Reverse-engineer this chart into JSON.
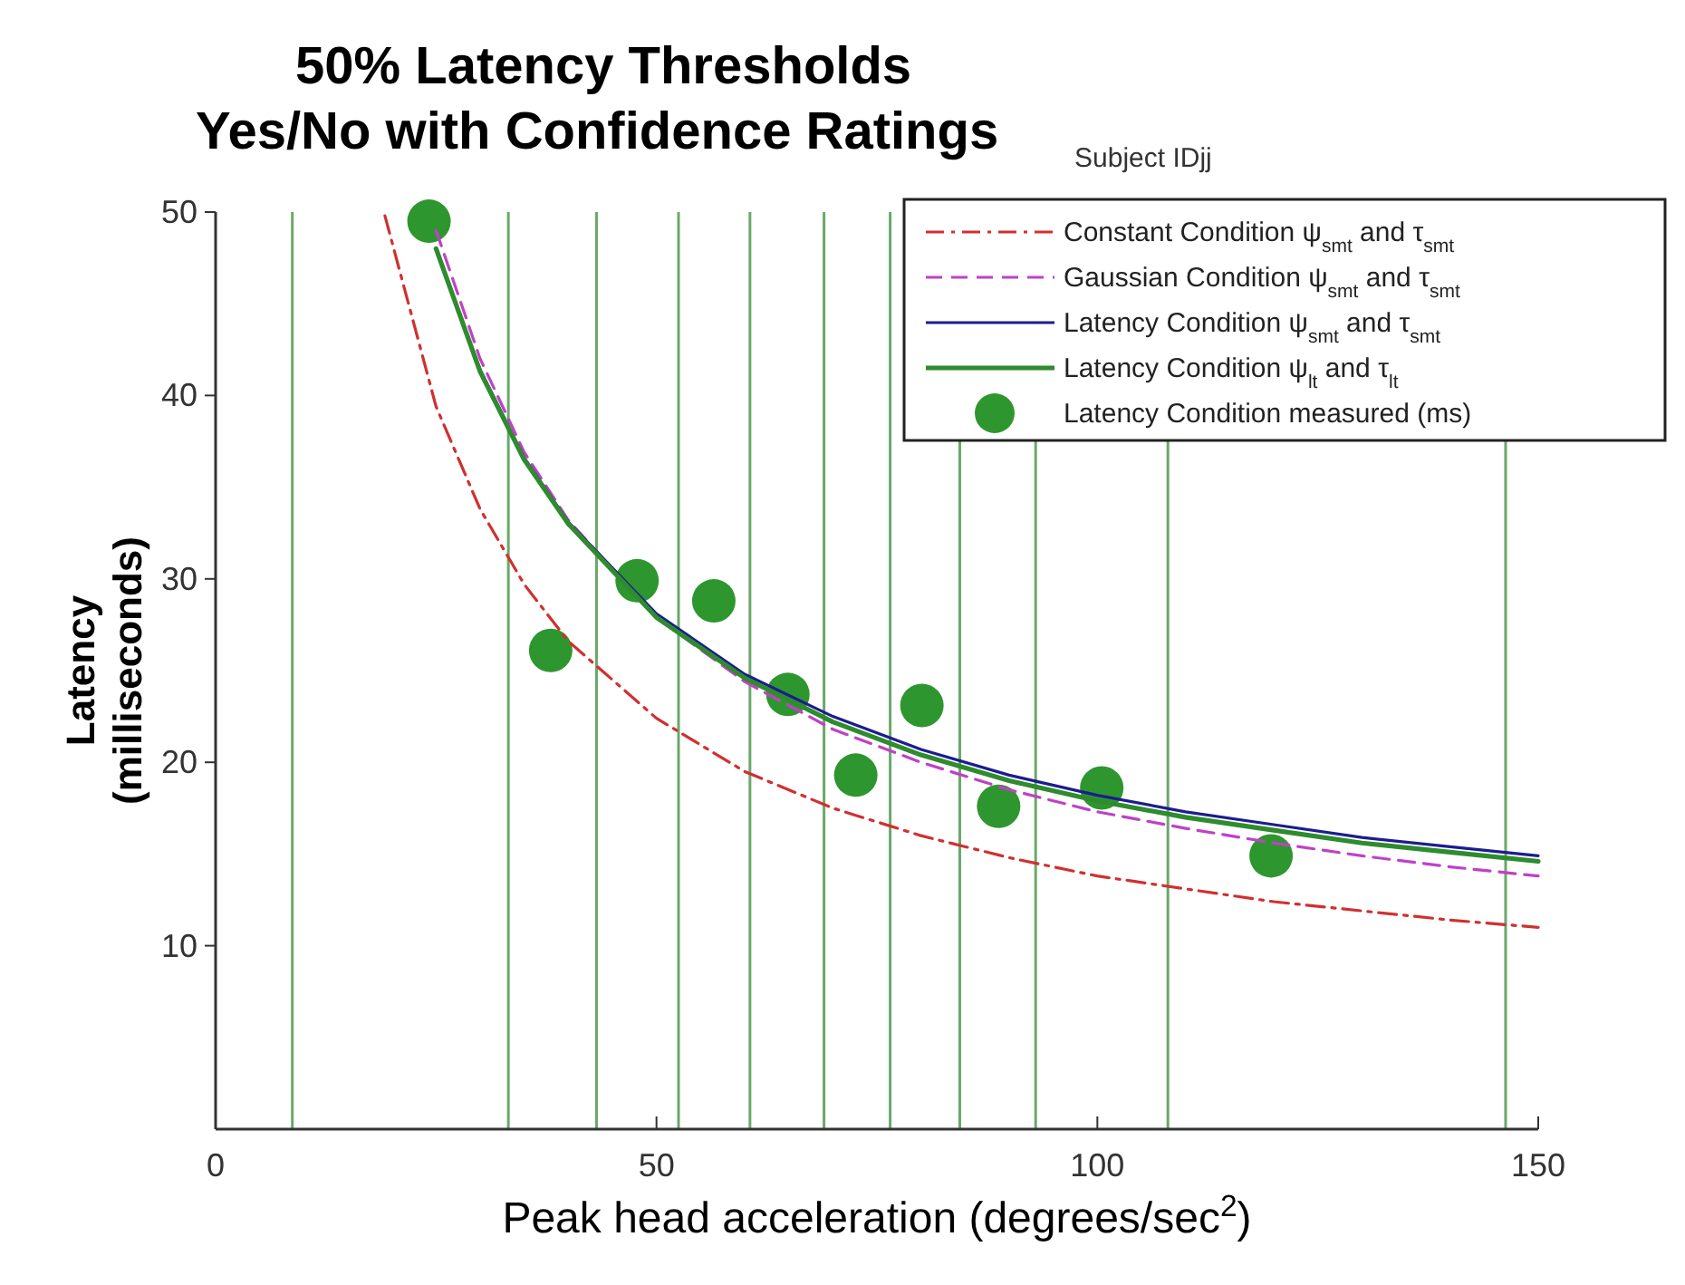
{
  "chart_data": {
    "type": "line",
    "title": "50% Latency Thresholds\nYes/No with Confidence Ratings",
    "subtitle": "Subject IDjj",
    "xlabel": "Peak head acceleration (degrees/sec$^{2}$)",
    "ylabel": "Latency\n(milliseconds)",
    "xlim": [
      0,
      150
    ],
    "xticks": [
      0,
      50,
      100,
      150
    ],
    "ylim": [
      0,
      50
    ],
    "yticks": [
      10,
      20,
      30,
      40,
      50
    ],
    "legend": "top right",
    "grid": false,
    "series": [
      {
        "name": "Constant Condition ψ$_{smt}$ and τ$_{smt}$",
        "color": "#d03030",
        "line_style": "dashdot",
        "x": [
          19.2,
          25,
          30,
          35,
          40,
          50,
          60,
          70,
          80,
          90,
          100,
          110,
          120,
          130,
          140,
          150
        ],
        "values": [
          49.8,
          39.4,
          33.8,
          29.7,
          26.6,
          22.4,
          19.5,
          17.5,
          16.0,
          14.8,
          13.8,
          13.1,
          12.4,
          11.9,
          11.4,
          11.0
        ]
      },
      {
        "name": "Gaussian Condition ψ$_{smt}$ and τ$_{smt}$",
        "color": "#c040c8",
        "line_style": "dashed",
        "x": [
          25,
          30,
          35,
          40,
          50,
          60,
          70,
          80,
          90,
          100,
          110,
          120,
          130,
          140,
          150
        ],
        "values": [
          49.0,
          42.0,
          36.9,
          33.2,
          27.9,
          24.4,
          21.8,
          20.0,
          18.5,
          17.3,
          16.4,
          15.6,
          14.9,
          14.3,
          13.8
        ]
      },
      {
        "name": "Latency Condition ψ$_{smt}$ and τ$_{smt}$",
        "color": "#1c1c90",
        "line_style": "solid",
        "x": [
          25,
          30,
          35,
          40,
          50,
          60,
          70,
          80,
          90,
          100,
          110,
          120,
          130,
          140,
          150
        ],
        "values": [
          48.0,
          41.4,
          36.6,
          33.1,
          28.1,
          24.8,
          22.5,
          20.7,
          19.3,
          18.2,
          17.3,
          16.6,
          15.9,
          15.4,
          14.9
        ]
      },
      {
        "name": "Latency Condition ψ$_{lt}$ and τ$_{lt}$",
        "color": "#2e8b2e",
        "line_style": "solid",
        "x": [
          25,
          30,
          35,
          40,
          50,
          60,
          70,
          80,
          90,
          100,
          110,
          120,
          130,
          140,
          150
        ],
        "values": [
          48.0,
          41.3,
          36.5,
          33.0,
          27.9,
          24.6,
          22.2,
          20.4,
          19.0,
          17.9,
          17.0,
          16.3,
          15.6,
          15.1,
          14.6
        ]
      },
      {
        "name": "Latency Condition measured (ms)",
        "type": "scatter",
        "color": "#2e962e",
        "marker": "circle",
        "x": [
          24.2,
          38.0,
          47.8,
          56.5,
          64.9,
          72.6,
          80.1,
          88.8,
          100.5,
          119.7
        ],
        "values": [
          49.5,
          26.1,
          29.9,
          28.8,
          23.7,
          19.3,
          23.1,
          17.6,
          18.6,
          14.9
        ]
      }
    ],
    "ref_lines": [
      {
        "axis": "x",
        "value": 8.7,
        "color": "#6aa86a"
      },
      {
        "axis": "x",
        "value": 33.2,
        "color": "#6aa86a"
      },
      {
        "axis": "x",
        "value": 43.2,
        "color": "#6aa86a"
      },
      {
        "axis": "x",
        "value": 52.5,
        "color": "#6aa86a"
      },
      {
        "axis": "x",
        "value": 60.6,
        "color": "#6aa86a"
      },
      {
        "axis": "x",
        "value": 69.0,
        "color": "#6aa86a"
      },
      {
        "axis": "x",
        "value": 76.5,
        "color": "#6aa86a"
      },
      {
        "axis": "x",
        "value": 84.4,
        "color": "#6aa86a"
      },
      {
        "axis": "x",
        "value": 93.0,
        "color": "#6aa86a"
      },
      {
        "axis": "x",
        "value": 108.0,
        "color": "#6aa86a"
      },
      {
        "axis": "x",
        "value": 146.3,
        "color": "#6aa86a"
      }
    ]
  }
}
